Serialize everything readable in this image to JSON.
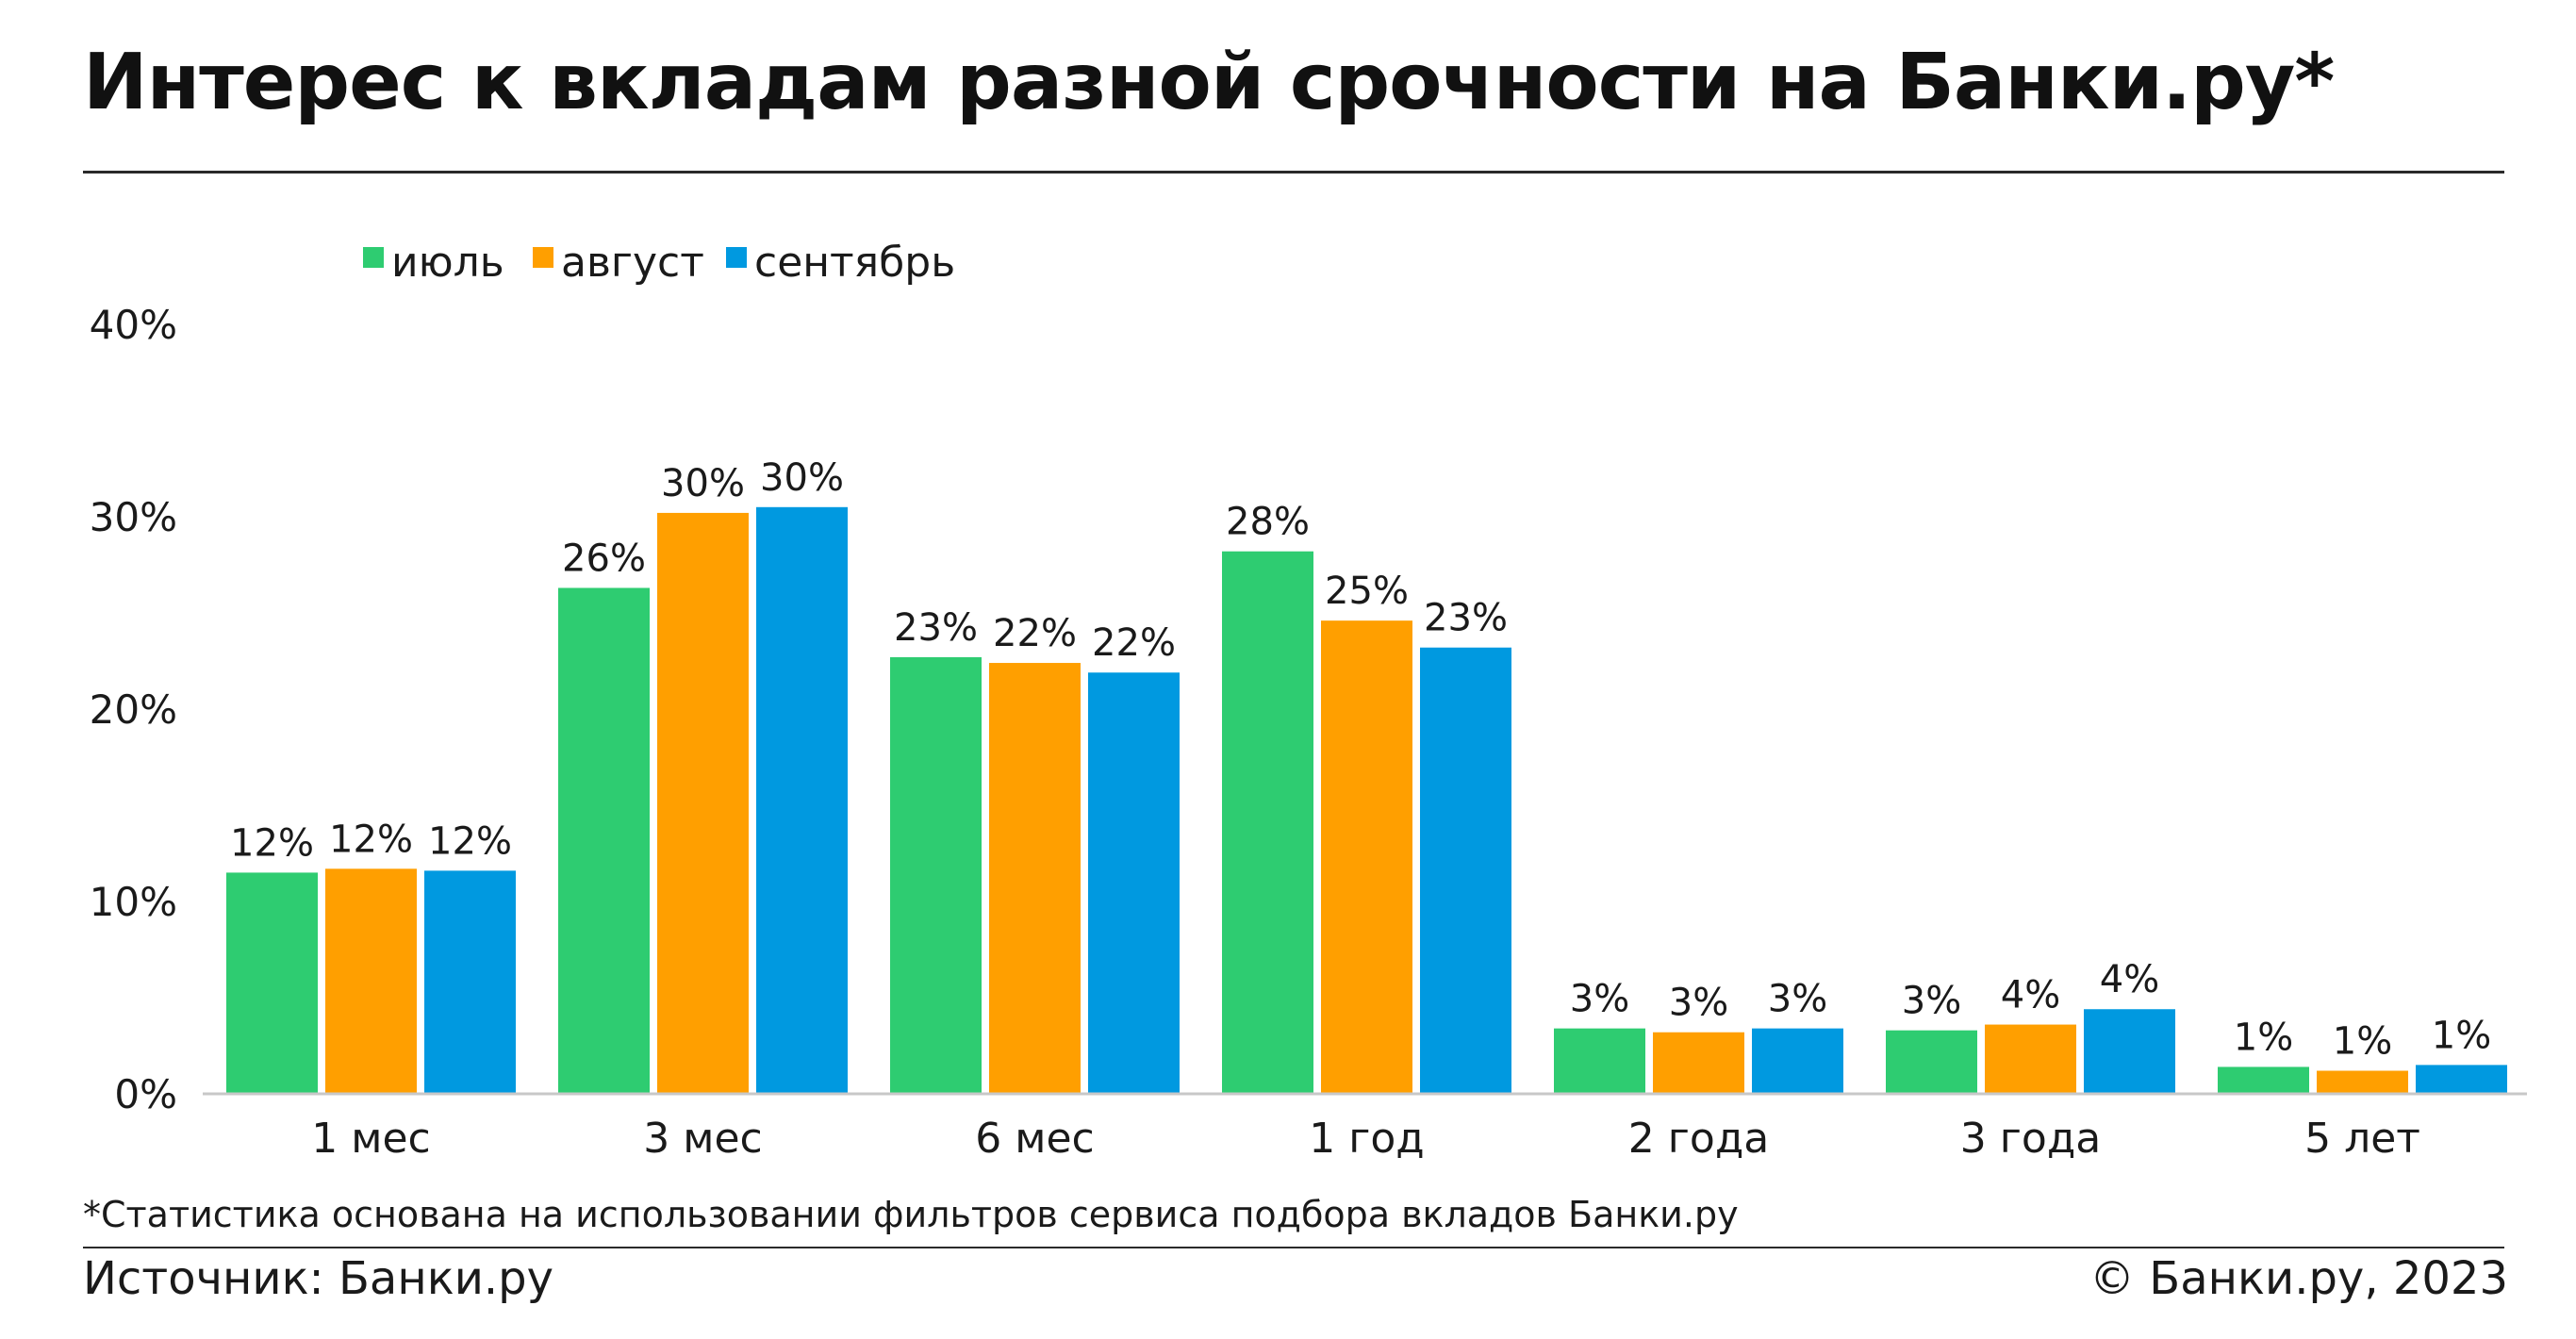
{
  "header": {
    "title": "Интерес к вкладам разной срочности на Банки.ру*"
  },
  "chart_data": {
    "type": "bar",
    "title": "Интерес к вкладам разной срочности на Банки.ру*",
    "categories": [
      "1 мес",
      "3 мес",
      "6 мес",
      "1 год",
      "2 года",
      "3 года",
      "5 лет"
    ],
    "series": [
      {
        "name": "июль",
        "color": "#2ecc71",
        "values": [
          11.5,
          26.3,
          22.7,
          28.2,
          3.4,
          3.3,
          1.4
        ],
        "labels": [
          "12%",
          "26%",
          "23%",
          "28%",
          "3%",
          "3%",
          "1%"
        ]
      },
      {
        "name": "август",
        "color": "#ff9f00",
        "values": [
          11.7,
          30.2,
          22.4,
          24.6,
          3.2,
          3.6,
          1.2
        ],
        "labels": [
          "12%",
          "30%",
          "22%",
          "25%",
          "3%",
          "4%",
          "1%"
        ]
      },
      {
        "name": "сентябрь",
        "color": "#0099e0",
        "values": [
          11.6,
          30.5,
          21.9,
          23.2,
          3.4,
          4.4,
          1.5
        ],
        "labels": [
          "12%",
          "30%",
          "22%",
          "23%",
          "3%",
          "4%",
          "1%"
        ]
      }
    ],
    "y_ticks": [
      {
        "value": 0,
        "label": "0%"
      },
      {
        "value": 10,
        "label": "10%"
      },
      {
        "value": 20,
        "label": "20%"
      },
      {
        "value": 30,
        "label": "30%"
      },
      {
        "value": 40,
        "label": "40%"
      }
    ],
    "ylim": [
      0,
      40
    ],
    "xlabel": "",
    "ylabel": "",
    "grid": false,
    "legend_position": "top-left"
  },
  "footer": {
    "note": "*Статистика основана на использовании фильтров сервиса подбора вкладов Банки.ру",
    "source": "Источник: Банки.ру",
    "copyright": "© Банки.ру, 2023"
  }
}
